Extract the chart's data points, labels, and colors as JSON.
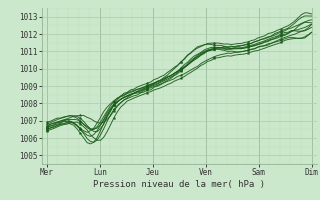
{
  "title": "Pression niveau de la mer( hPa )",
  "ylim": [
    1004.5,
    1013.5
  ],
  "yticks": [
    1005,
    1006,
    1007,
    1008,
    1009,
    1010,
    1011,
    1012,
    1013
  ],
  "day_labels": [
    "Mer",
    "Lun",
    "Jeu",
    "Ven",
    "Sam",
    "Dim"
  ],
  "day_positions": [
    0,
    1,
    2,
    3,
    4,
    5
  ],
  "bg_color": "#cce8cc",
  "grid_major_color": "#aaccaa",
  "grid_minor_color": "#bbddbb",
  "line_color": "#1a5c1a",
  "marker_color": "#1a5c1a",
  "series_params": [
    [
      1,
      1006.6,
      1012.6,
      0.85,
      1.5,
      3.05,
      0.8
    ],
    [
      2,
      1006.5,
      1012.4,
      0.9,
      1.8,
      3.0,
      1.0
    ],
    [
      3,
      1006.7,
      1012.8,
      0.8,
      1.3,
      3.1,
      0.6
    ],
    [
      4,
      1006.8,
      1013.0,
      0.95,
      1.6,
      2.95,
      0.9
    ],
    [
      5,
      1006.4,
      1012.2,
      1.0,
      1.7,
      3.15,
      0.5
    ],
    [
      6,
      1006.9,
      1012.5,
      0.88,
      1.4,
      3.05,
      0.7
    ],
    [
      7,
      1006.6,
      1012.7,
      0.92,
      1.2,
      3.0,
      0.85
    ],
    [
      8,
      1006.5,
      1012.9,
      0.85,
      1.9,
      2.9,
      1.1
    ],
    [
      9,
      1006.7,
      1012.3,
      1.05,
      1.0,
      3.2,
      0.45
    ]
  ]
}
